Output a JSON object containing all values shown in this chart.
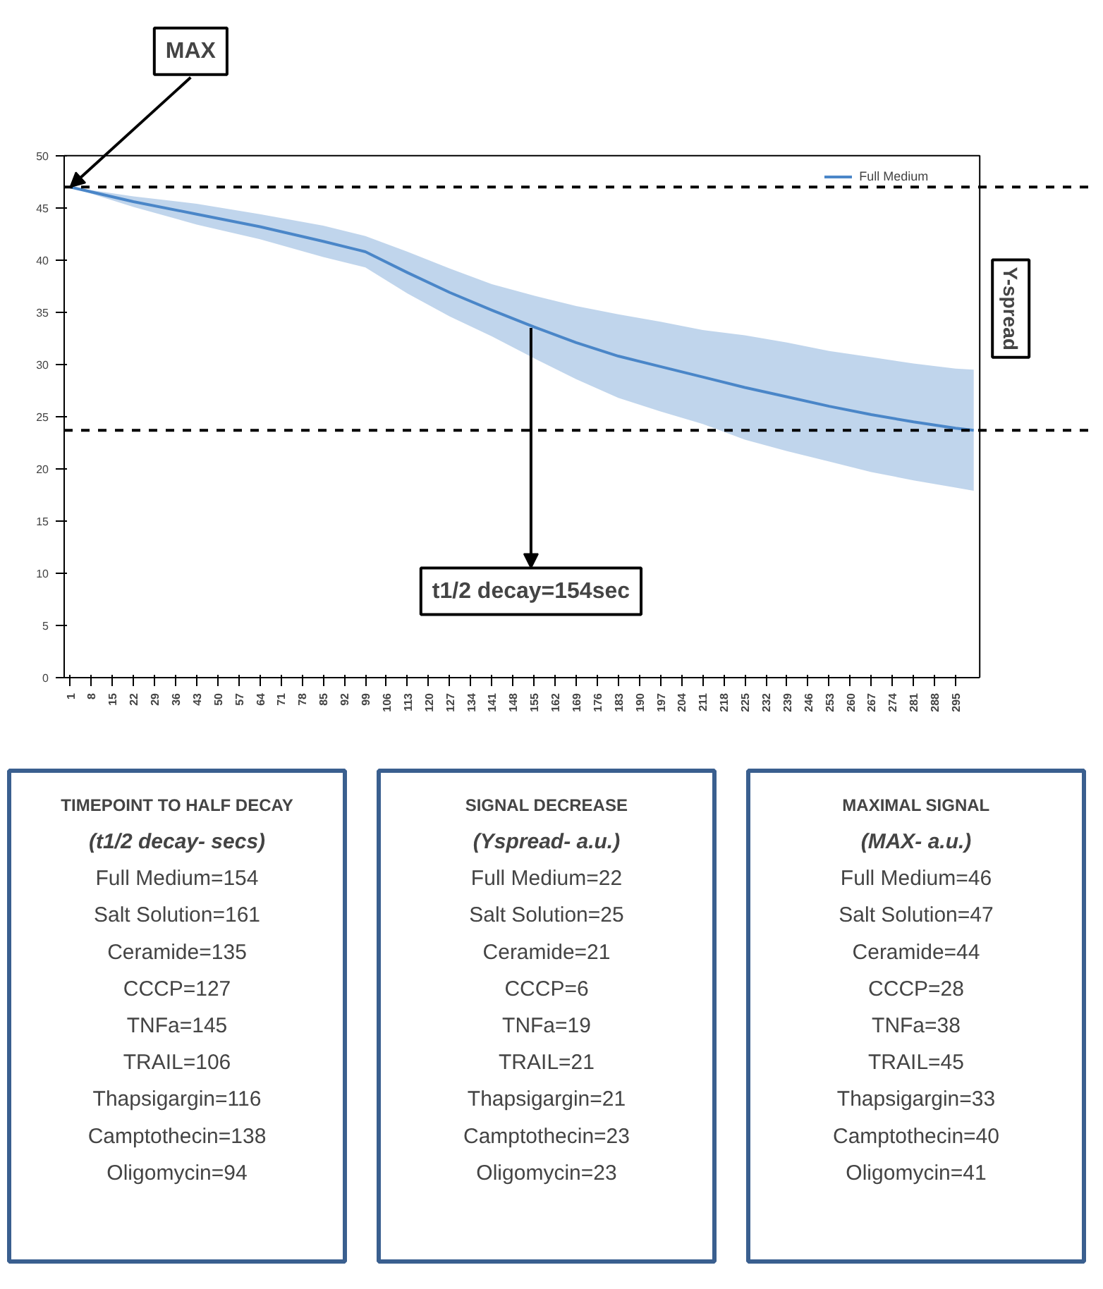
{
  "chart_data": [
    {
      "type": "line",
      "legend": "top right",
      "grid": false,
      "line_style": "solid",
      "x": [
        1,
        22,
        43,
        64,
        85,
        99,
        113,
        127,
        141,
        155,
        169,
        183,
        197,
        211,
        225,
        239,
        253,
        267,
        281,
        295,
        301
      ],
      "series": [
        {
          "name": "Full Medium",
          "color": "#4a86c8",
          "values": [
            47,
            45.6,
            44.4,
            43.2,
            41.8,
            40.8,
            38.8,
            36.9,
            35.2,
            33.6,
            32.1,
            30.8,
            29.8,
            28.8,
            27.8,
            26.9,
            26,
            25.2,
            24.5,
            23.9,
            23.7
          ],
          "lower": [
            47,
            45.1,
            43.4,
            42,
            40.3,
            39.3,
            36.8,
            34.6,
            32.7,
            30.6,
            28.6,
            26.8,
            25.5,
            24.3,
            22.8,
            21.7,
            20.7,
            19.7,
            18.9,
            18.2,
            17.9
          ],
          "upper": [
            47,
            46.1,
            45.4,
            44.4,
            43.3,
            42.3,
            40.8,
            39.2,
            37.7,
            36.6,
            35.6,
            34.8,
            34.1,
            33.3,
            32.8,
            32.1,
            31.3,
            30.7,
            30.1,
            29.6,
            29.5
          ]
        }
      ],
      "xlim": [
        -1,
        303
      ],
      "xticks": [
        1,
        8,
        15,
        22,
        29,
        36,
        43,
        50,
        57,
        64,
        71,
        78,
        85,
        92,
        99,
        106,
        113,
        120,
        127,
        134,
        141,
        148,
        155,
        162,
        169,
        176,
        183,
        190,
        197,
        204,
        211,
        218,
        225,
        232,
        239,
        246,
        253,
        260,
        267,
        274,
        281,
        288,
        295
      ],
      "ylim": [
        0,
        50
      ],
      "yticks": [
        0,
        5,
        10,
        15,
        20,
        25,
        30,
        35,
        40,
        45,
        50
      ],
      "ref_lines": [
        {
          "axis": "y",
          "value": 47,
          "color": "#000000",
          "line_style": "dashed"
        },
        {
          "axis": "y",
          "value": 23.7,
          "color": "#000000",
          "line_style": "dashed"
        }
      ],
      "annotations": [
        {
          "text": "MAX",
          "x": 1,
          "y": 47
        },
        {
          "text": "t1/2 decay=154sec",
          "x": 154,
          "y": 33.5
        },
        "Y-spread"
      ]
    },
    {
      "type": "other",
      "title": "TIMEPOINT TO HALF DECAY",
      "subtitle": "(t1/2 decay- secs)",
      "annotations": [
        "Full Medium=154",
        "Salt Solution=161",
        "Ceramide=135",
        "CCCP=127",
        "TNFa=145",
        "TRAIL=106",
        "Thapsigargin=116",
        "Camptothecin=138",
        "Oligomycin=94"
      ]
    },
    {
      "type": "other",
      "title": "SIGNAL DECREASE",
      "subtitle": "(Yspread- a.u.)",
      "annotations": [
        "Full Medium=22",
        "Salt Solution=25",
        "Ceramide=21",
        "CCCP=6",
        "TNFa=19",
        "TRAIL=21",
        "Thapsigargin=21",
        "Camptothecin=23",
        "Oligomycin=23"
      ]
    },
    {
      "type": "other",
      "title": "MAXIMAL SIGNAL",
      "subtitle": "(MAX- a.u.)",
      "annotations": [
        "Full Medium=46",
        "Salt Solution=47",
        "Ceramide=44",
        "CCCP=28",
        "TNFa=38",
        "TRAIL=45",
        "Thapsigargin=33",
        "Camptothecin=40",
        "Oligomycin=41"
      ]
    }
  ]
}
